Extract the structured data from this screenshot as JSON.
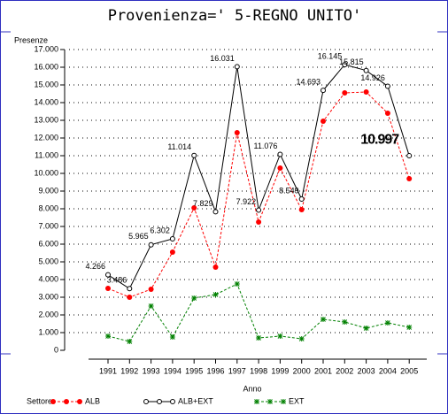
{
  "chart_data": {
    "type": "line",
    "title": "Provenienza=' 5-REGNO UNITO'",
    "ylabel": "Presenze",
    "xlabel": "Anno",
    "legend_title": "Settore",
    "categories": [
      "1991",
      "1992",
      "1993",
      "1994",
      "1995",
      "1996",
      "1997",
      "1998",
      "1999",
      "2000",
      "2001",
      "2002",
      "2003",
      "2004",
      "2005"
    ],
    "series": [
      {
        "name": "ALB",
        "color": "#ff0000",
        "marker": "dot",
        "dashed": true,
        "values": [
          3500,
          3000,
          3450,
          5550,
          8050,
          4700,
          12300,
          7250,
          10300,
          7950,
          12950,
          14550,
          14600,
          13400,
          9700
        ]
      },
      {
        "name": "ALB+EXT",
        "color": "#000000",
        "marker": "circle",
        "dashed": false,
        "values": [
          4266,
          3486,
          5965,
          6302,
          11014,
          7829,
          16031,
          7922,
          11076,
          8549,
          14693,
          16145,
          15815,
          14926,
          10997
        ],
        "value_labels": [
          "4.266",
          "3.486",
          "5.965",
          "6.302",
          "11.014",
          "7.829",
          "16.031",
          "7.922",
          "11.076",
          "8.549",
          "14.693",
          "16.145",
          "15.815",
          "14.926",
          "10.997"
        ]
      },
      {
        "name": "EXT",
        "color": "#008000",
        "marker": "star",
        "dashed": true,
        "values": [
          800,
          500,
          2500,
          750,
          2950,
          3150,
          3750,
          700,
          800,
          650,
          1750,
          1600,
          1250,
          1550,
          1300
        ]
      }
    ],
    "ylim": [
      0,
      17000
    ],
    "yticks": [
      0,
      {
        "value": 1000,
        "label": "1.000"
      },
      {
        "value": 2000,
        "label": "2.000"
      },
      {
        "value": 3000,
        "label": "3.000"
      },
      {
        "value": 4000,
        "label": "4.000"
      },
      {
        "value": 5000,
        "label": "5.000"
      },
      {
        "value": 6000,
        "label": "6.000"
      },
      {
        "value": 7000,
        "label": "7.000"
      },
      {
        "value": 8000,
        "label": "8.000"
      },
      {
        "value": 9000,
        "label": "9.000"
      },
      {
        "value": 10000,
        "label": "10.000"
      },
      {
        "value": 11000,
        "label": "11.000"
      },
      {
        "value": 12000,
        "label": "12.000"
      },
      {
        "value": 13000,
        "label": "13.000"
      },
      {
        "value": 14000,
        "label": "14.000"
      },
      {
        "value": 15000,
        "label": "15.000"
      },
      {
        "value": 16000,
        "label": "16.000"
      },
      {
        "value": 17000,
        "label": "17.000"
      }
    ],
    "grid": true
  }
}
